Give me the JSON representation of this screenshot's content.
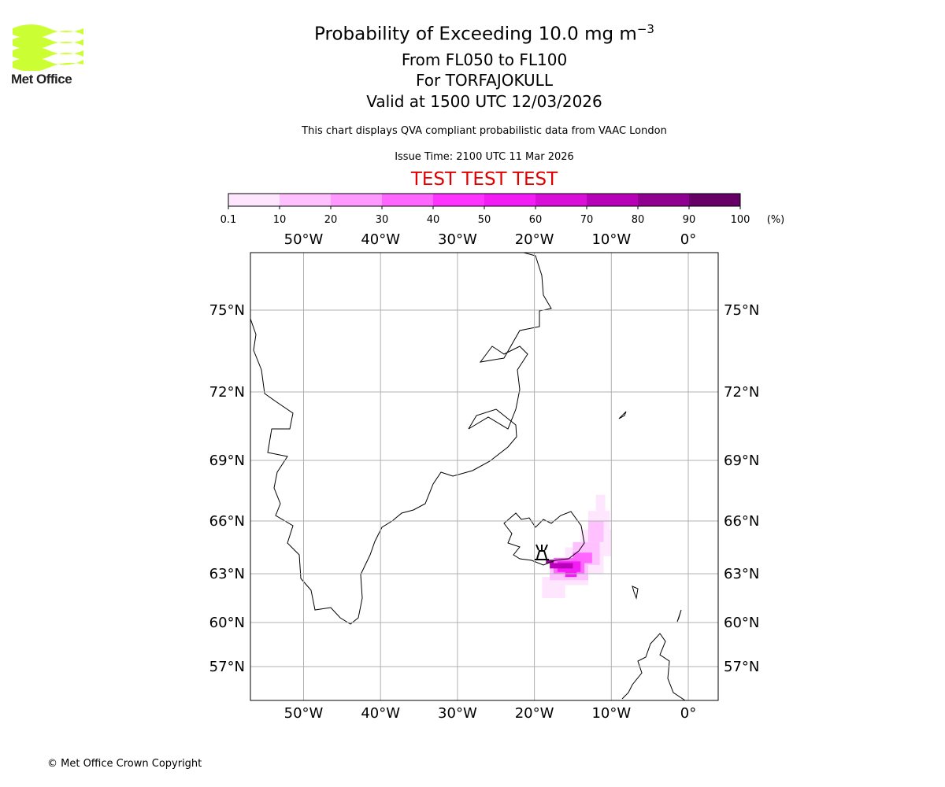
{
  "header": {
    "title": "Probability of Exceeding 10.0 mg m",
    "title_sup": "−3",
    "levels": "From FL050 to FL100",
    "volcano": "For TORFAJOKULL",
    "valid": "Valid at 1500 UTC 12/03/2026",
    "subtitle": "This chart displays QVA compliant probabilistic data from VAAC London",
    "issue": "Issue Time: 2100 UTC 11 Mar 2026",
    "test_banner": "TEST TEST TEST"
  },
  "logo": {
    "text": "Met Office"
  },
  "footer": {
    "copyright": "© Met Office Crown Copyright"
  },
  "colorbar": {
    "ticks": [
      "0.1",
      "10",
      "20",
      "30",
      "40",
      "50",
      "60",
      "70",
      "80",
      "90",
      "100"
    ],
    "unit": "(%)",
    "colors": [
      "#ffe6ff",
      "#ffc0ff",
      "#ff99ff",
      "#ff66ff",
      "#ff33ff",
      "#f41cf4",
      "#d90ed9",
      "#b800b8",
      "#900090",
      "#660066"
    ]
  },
  "map": {
    "lon_labels": [
      "50°W",
      "40°W",
      "30°W",
      "20°W",
      "10°W",
      "0°"
    ],
    "lat_labels": [
      "75°N",
      "72°N",
      "69°N",
      "66°N",
      "63°N",
      "60°N",
      "57°N"
    ],
    "volcano_icon": "volcano-icon",
    "probability_cells": [
      [
        -19,
        -16,
        61.5,
        62.8,
        5
      ],
      [
        -18,
        -13,
        62.3,
        63.5,
        5
      ],
      [
        -16,
        -11,
        63,
        64.5,
        5
      ],
      [
        -14,
        -10,
        64,
        65.5,
        5
      ],
      [
        -13,
        -10.2,
        65.5,
        66.5,
        5
      ],
      [
        -12,
        -10.8,
        66.5,
        67.3,
        5
      ],
      [
        -18,
        -13,
        62.6,
        63.8,
        15
      ],
      [
        -15,
        -11.5,
        63.5,
        64.8,
        15
      ],
      [
        -13,
        -11,
        64.8,
        66,
        15
      ],
      [
        -17.5,
        -13.5,
        63,
        63.9,
        35
      ],
      [
        -15,
        -12.5,
        63.6,
        64.2,
        35
      ],
      [
        -17,
        -14,
        63.1,
        63.7,
        55
      ],
      [
        -16,
        -14.5,
        62.8,
        63.2,
        55
      ],
      [
        -18,
        -15,
        63.3,
        63.6,
        75
      ],
      [
        -18.5,
        -17.5,
        63.6,
        63.8,
        85
      ]
    ]
  }
}
